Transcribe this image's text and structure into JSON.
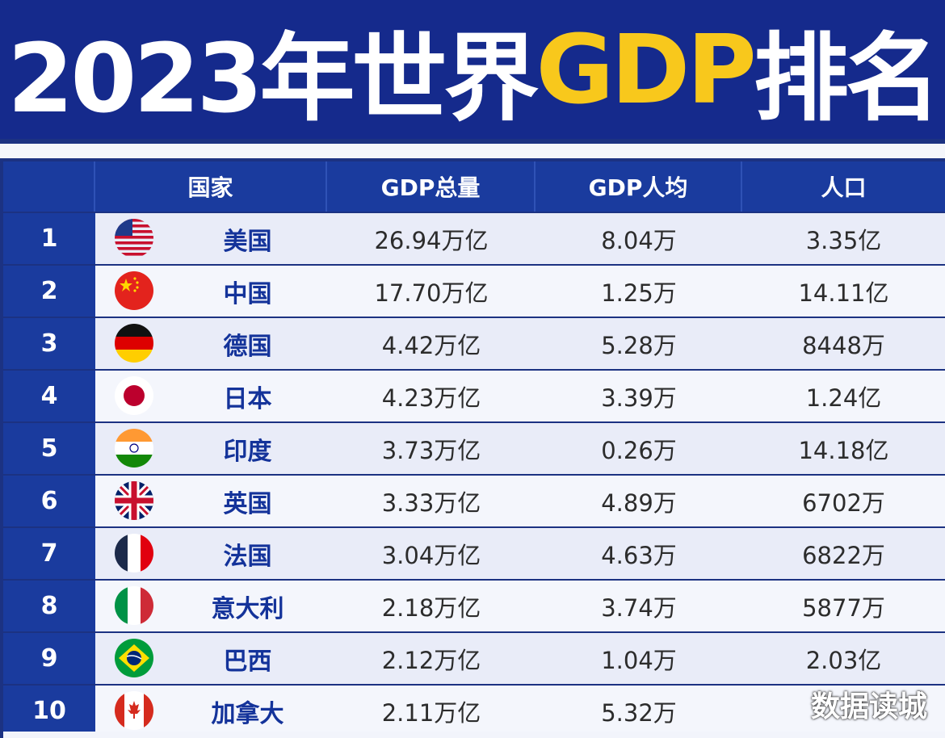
{
  "title": {
    "prefix": "2023年世界",
    "highlight": "GDP",
    "suffix": "排名"
  },
  "table": {
    "headers": {
      "rank": "",
      "country": "国家",
      "total": "GDP总量",
      "per_capita": "GDP人均",
      "population": "人口"
    },
    "rows": [
      {
        "rank": "1",
        "country": "美国",
        "flag": "usa-flag-icon",
        "total": "26.94万亿",
        "per_capita": "8.04万",
        "population": "3.35亿"
      },
      {
        "rank": "2",
        "country": "中国",
        "flag": "china-flag-icon",
        "total": "17.70万亿",
        "per_capita": "1.25万",
        "population": "14.11亿"
      },
      {
        "rank": "3",
        "country": "德国",
        "flag": "germany-flag-icon",
        "total": "4.42万亿",
        "per_capita": "5.28万",
        "population": "8448万"
      },
      {
        "rank": "4",
        "country": "日本",
        "flag": "japan-flag-icon",
        "total": "4.23万亿",
        "per_capita": "3.39万",
        "population": "1.24亿"
      },
      {
        "rank": "5",
        "country": "印度",
        "flag": "india-flag-icon",
        "total": "3.73万亿",
        "per_capita": "0.26万",
        "population": "14.18亿"
      },
      {
        "rank": "6",
        "country": "英国",
        "flag": "uk-flag-icon",
        "total": "3.33万亿",
        "per_capita": "4.89万",
        "population": "6702万"
      },
      {
        "rank": "7",
        "country": "法国",
        "flag": "france-flag-icon",
        "total": "3.04万亿",
        "per_capita": "4.63万",
        "population": "6822万"
      },
      {
        "rank": "8",
        "country": "意大利",
        "flag": "italy-flag-icon",
        "total": "2.18万亿",
        "per_capita": "3.74万",
        "population": "5877万"
      },
      {
        "rank": "9",
        "country": "巴西",
        "flag": "brazil-flag-icon",
        "total": "2.12万亿",
        "per_capita": "1.04万",
        "population": "2.03亿"
      },
      {
        "rank": "10",
        "country": "加拿大",
        "flag": "canada-flag-icon",
        "total": "2.11万亿",
        "per_capita": "5.32万",
        "population": ""
      }
    ]
  },
  "watermark": "数据读城",
  "colors": {
    "header_bg": "#1a3b9e",
    "title_bg": "#152a8c",
    "title_highlight": "#f8c81c",
    "country_text": "#14339a"
  }
}
